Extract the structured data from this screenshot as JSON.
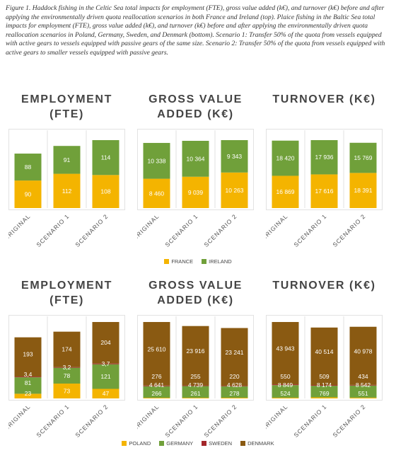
{
  "caption": "Figure 1. Haddock fishing in the Celtic Sea total impacts for employment (FTE), gross value added (k€), and turnover (k€) before and after applying the environmentally driven quota reallocation scenarios in both France and Ireland (top). Plaice fishing in the Baltic Sea total impacts for employment (FTE), gross value added (k€), and turnover (k€) before and after applying the environmentally driven quota reallocation scenarios in Poland, Germany, Sweden, and Denmark (bottom). Scenario 1: Transfer 50% of the quota from vessels equipped with active gears to vessels equipped with passive gears of the same size. Scenario 2: Transfer 50% of the quota from vessels equipped with active gears to smaller vessels equipped with passive gears.",
  "chart_data": [
    {
      "type": "stacked-bar",
      "title": "EMPLOYMENT (FTE)",
      "categories": [
        "ORIGINAL",
        "SCENARIO 1",
        "SCENARIO 2"
      ],
      "series": [
        {
          "name": "FRANCE",
          "color": "#f4b400",
          "values": [
            90,
            112,
            108
          ]
        },
        {
          "name": "IRELAND",
          "color": "#70a03a",
          "values": [
            88,
            91,
            114
          ]
        }
      ]
    },
    {
      "type": "stacked-bar",
      "title": "GROSS VALUE ADDED (K€)",
      "categories": [
        "ORIGINAL",
        "SCENARIO 1",
        "SCENARIO 2"
      ],
      "series": [
        {
          "name": "FRANCE",
          "color": "#f4b400",
          "values": [
            8460,
            9039,
            10263
          ],
          "value_labels": [
            "8 460",
            "9 039",
            "10 263"
          ]
        },
        {
          "name": "IRELAND",
          "color": "#70a03a",
          "values": [
            10338,
            10364,
            9343
          ],
          "value_labels": [
            "10 338",
            "10 364",
            "9 343"
          ]
        }
      ]
    },
    {
      "type": "stacked-bar",
      "title": "TURNOVER (K€)",
      "categories": [
        "ORIGINAL",
        "SCENARIO 1",
        "SCENARIO 2"
      ],
      "series": [
        {
          "name": "FRANCE",
          "color": "#f4b400",
          "values": [
            16869,
            17616,
            18391
          ],
          "value_labels": [
            "16 869",
            "17 616",
            "18 391"
          ]
        },
        {
          "name": "IRELAND",
          "color": "#70a03a",
          "values": [
            18420,
            17936,
            15769
          ],
          "value_labels": [
            "18 420",
            "17 936",
            "15 769"
          ]
        }
      ]
    },
    {
      "type": "stacked-bar",
      "title": "EMPLOYMENT (FTE)",
      "categories": [
        "ORIGINAL",
        "SCENARIO 1",
        "SCENARIO 2"
      ],
      "series": [
        {
          "name": "POLAND",
          "color": "#f4b400",
          "values": [
            23,
            73,
            47
          ]
        },
        {
          "name": "GERMANY",
          "color": "#70a03a",
          "values": [
            81,
            78,
            121
          ]
        },
        {
          "name": "SWEDEN",
          "color": "#a3262a",
          "values": [
            3.4,
            3.2,
            3.7
          ],
          "value_labels": [
            "3,4",
            "3,2",
            "3,7"
          ]
        },
        {
          "name": "DENMARK",
          "color": "#8a5a12",
          "values": [
            193,
            174,
            204
          ]
        }
      ]
    },
    {
      "type": "stacked-bar",
      "title": "GROSS VALUE ADDED (K€)",
      "categories": [
        "ORIGINAL",
        "SCENARIO 1",
        "SCENARIO 2"
      ],
      "series": [
        {
          "name": "POLAND",
          "color": "#f4b400",
          "values": [
            266,
            261,
            278
          ]
        },
        {
          "name": "GERMANY",
          "color": "#70a03a",
          "values": [
            4641,
            4739,
            4628
          ],
          "value_labels": [
            "4 641",
            "4 739",
            "4 628"
          ]
        },
        {
          "name": "SWEDEN",
          "color": "#a3262a",
          "values": [
            276,
            255,
            220
          ]
        },
        {
          "name": "DENMARK",
          "color": "#8a5a12",
          "values": [
            25610,
            23916,
            23241
          ],
          "value_labels": [
            "25 610",
            "23 916",
            "23 241"
          ]
        }
      ]
    },
    {
      "type": "stacked-bar",
      "title": "TURNOVER (K€)",
      "categories": [
        "ORIGINAL",
        "SCENARIO 1",
        "SCENARIO 2"
      ],
      "series": [
        {
          "name": "POLAND",
          "color": "#f4b400",
          "values": [
            524,
            769,
            551
          ]
        },
        {
          "name": "GERMANY",
          "color": "#70a03a",
          "values": [
            8849,
            8174,
            8542
          ],
          "value_labels": [
            "8 849",
            "8 174",
            "8 542"
          ]
        },
        {
          "name": "SWEDEN",
          "color": "#a3262a",
          "values": [
            550,
            509,
            434
          ]
        },
        {
          "name": "DENMARK",
          "color": "#8a5a12",
          "values": [
            43943,
            40514,
            40978
          ],
          "value_labels": [
            "43 943",
            "40 514",
            "40 978"
          ]
        }
      ]
    }
  ]
}
